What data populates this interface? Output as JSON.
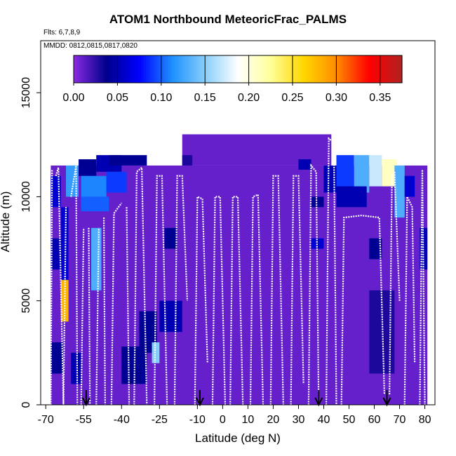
{
  "chart_data": {
    "type": "heatmap",
    "title": "ATOM1 Northbound MeteoricFrac_PALMS",
    "subtitle_flights": "Flts: 6,7,8,9",
    "subtitle_dates": "MMDD: 0812,0815,0817,0820",
    "xlabel": "Latitude (deg N)",
    "ylabel": "Altitude (m)",
    "xlim": [
      -72,
      84
    ],
    "ylim": [
      0,
      17500
    ],
    "x_ticks": [
      -70,
      -55,
      -40,
      -25,
      -10,
      0,
      10,
      20,
      30,
      40,
      50,
      60,
      70,
      80
    ],
    "y_ticks": [
      0,
      5000,
      10000,
      15000
    ],
    "colorbar": {
      "range": [
        0,
        0.375
      ],
      "ticks": [
        0.0,
        0.05,
        0.1,
        0.15,
        0.2,
        0.25,
        0.3,
        0.35
      ],
      "tick_labels": [
        "0.00",
        "0.05",
        "0.10",
        "0.15",
        "0.20",
        "0.25",
        "0.30",
        "0.35"
      ],
      "colors": [
        "#8a2be2",
        "#00008b",
        "#0000ff",
        "#1e90ff",
        "#87cefa",
        "#ffffff",
        "#ffff99",
        "#ffd700",
        "#ff8c00",
        "#ff0000",
        "#b22222"
      ]
    },
    "background_value": 0.01,
    "cells": [
      {
        "lat": [
          -68,
          -65
        ],
        "alt": [
          0,
          11000
        ],
        "value": 0.01
      },
      {
        "lat": [
          -68,
          -64
        ],
        "alt": [
          6500,
          8000
        ],
        "value": 0.05
      },
      {
        "lat": [
          -68,
          -64
        ],
        "alt": [
          9500,
          11000
        ],
        "value": 0.06
      },
      {
        "lat": [
          -68,
          -63
        ],
        "alt": [
          1500,
          3000
        ],
        "value": 0.04
      },
      {
        "lat": [
          -64,
          -61
        ],
        "alt": [
          4000,
          6000
        ],
        "value": 0.28
      },
      {
        "lat": [
          -64,
          -61
        ],
        "alt": [
          6000,
          9500
        ],
        "value": 0.06
      },
      {
        "lat": [
          -62,
          -57
        ],
        "alt": [
          10000,
          11500
        ],
        "value": 0.12
      },
      {
        "lat": [
          -60,
          -56
        ],
        "alt": [
          1000,
          2500
        ],
        "value": 0.05
      },
      {
        "lat": [
          -57,
          -50
        ],
        "alt": [
          11000,
          11800
        ],
        "value": 0.04
      },
      {
        "lat": [
          -56,
          -46
        ],
        "alt": [
          10000,
          11000
        ],
        "value": 0.11
      },
      {
        "lat": [
          -56,
          -45
        ],
        "alt": [
          9300,
          10000
        ],
        "value": 0.1
      },
      {
        "lat": [
          -52,
          -48
        ],
        "alt": [
          5500,
          8500
        ],
        "value": 0.13
      },
      {
        "lat": [
          -50,
          -40
        ],
        "alt": [
          11200,
          12000
        ],
        "value": 0.05
      },
      {
        "lat": [
          -46,
          -38
        ],
        "alt": [
          10200,
          11200
        ],
        "value": 0.09
      },
      {
        "lat": [
          -45,
          -30
        ],
        "alt": [
          11500,
          12000
        ],
        "value": 0.04
      },
      {
        "lat": [
          -40,
          -30
        ],
        "alt": [
          1000,
          2800
        ],
        "value": 0.04
      },
      {
        "lat": [
          -33,
          -26
        ],
        "alt": [
          2500,
          4500
        ],
        "value": 0.04
      },
      {
        "lat": [
          -28,
          -25
        ],
        "alt": [
          2000,
          3000
        ],
        "value": 0.15
      },
      {
        "lat": [
          -25,
          -16
        ],
        "alt": [
          3500,
          5000
        ],
        "value": 0.05
      },
      {
        "lat": [
          -23,
          -18
        ],
        "alt": [
          7500,
          8500
        ],
        "value": 0.04
      },
      {
        "lat": [
          -16,
          -12
        ],
        "alt": [
          11500,
          12000
        ],
        "value": 0.03
      },
      {
        "lat": [
          30,
          35
        ],
        "alt": [
          11300,
          11800
        ],
        "value": 0.05
      },
      {
        "lat": [
          35,
          40
        ],
        "alt": [
          7500,
          8000
        ],
        "value": 0.06
      },
      {
        "lat": [
          35,
          40
        ],
        "alt": [
          9500,
          10000
        ],
        "value": 0.04
      },
      {
        "lat": [
          40,
          45
        ],
        "alt": [
          10200,
          11500
        ],
        "value": 0.05
      },
      {
        "lat": [
          45,
          52
        ],
        "alt": [
          10200,
          12000
        ],
        "value": 0.09
      },
      {
        "lat": [
          52,
          58
        ],
        "alt": [
          10200,
          12000
        ],
        "value": 0.13
      },
      {
        "lat": [
          58,
          63
        ],
        "alt": [
          10500,
          12000
        ],
        "value": 0.17
      },
      {
        "lat": [
          63,
          69
        ],
        "alt": [
          10500,
          11800
        ],
        "value": 0.21
      },
      {
        "lat": [
          45,
          57
        ],
        "alt": [
          9500,
          10500
        ],
        "value": 0.05
      },
      {
        "lat": [
          58,
          63
        ],
        "alt": [
          7000,
          8000
        ],
        "value": 0.04
      },
      {
        "lat": [
          58,
          68
        ],
        "alt": [
          1500,
          5500
        ],
        "value": 0.03
      },
      {
        "lat": [
          68,
          72
        ],
        "alt": [
          9000,
          11500
        ],
        "value": 0.13
      },
      {
        "lat": [
          72,
          76
        ],
        "alt": [
          10000,
          11000
        ],
        "value": 0.06
      },
      {
        "lat": [
          78,
          81
        ],
        "alt": [
          6500,
          8500
        ],
        "value": 0.05
      }
    ],
    "flight_tracks": [
      [
        [
          -68,
          0
        ],
        [
          -67.5,
          11300
        ]
      ],
      [
        [
          -66,
          11000
        ],
        [
          -65,
          11400
        ],
        [
          -63,
          0
        ]
      ],
      [
        [
          -63,
          0
        ],
        [
          -62,
          9500
        ]
      ],
      [
        [
          -60,
          10000
        ],
        [
          -58,
          11500
        ],
        [
          -57.5,
          0
        ]
      ],
      [
        [
          -56,
          0
        ],
        [
          -55,
          8500
        ]
      ],
      [
        [
          -53,
          8500
        ],
        [
          -52.5,
          0
        ]
      ],
      [
        [
          -50,
          0
        ],
        [
          -49,
          8500
        ]
      ],
      [
        [
          -47,
          9000
        ],
        [
          -46.5,
          0
        ]
      ],
      [
        [
          -44,
          0
        ],
        [
          -43,
          9200
        ],
        [
          -40,
          9700
        ]
      ],
      [
        [
          -38,
          9500
        ],
        [
          -37,
          0
        ]
      ],
      [
        [
          -35,
          0
        ],
        [
          -34,
          11200
        ],
        [
          -32,
          11400
        ],
        [
          -30,
          0
        ]
      ],
      [
        [
          -27,
          0
        ],
        [
          -26,
          11000
        ],
        [
          -24,
          11000
        ],
        [
          -22,
          0
        ]
      ],
      [
        [
          -19,
          0
        ],
        [
          -18,
          11000
        ],
        [
          -16,
          11000
        ],
        [
          -14,
          5000
        ]
      ],
      [
        [
          -11,
          0
        ],
        [
          -10,
          10000
        ],
        [
          -8,
          9900
        ],
        [
          -6,
          2000
        ]
      ],
      [
        [
          -4,
          0
        ],
        [
          -3,
          10000
        ],
        [
          -1,
          10000
        ],
        [
          1,
          0
        ]
      ],
      [
        [
          3,
          0
        ],
        [
          4,
          10000
        ],
        [
          6,
          10000
        ],
        [
          8,
          0
        ]
      ],
      [
        [
          11,
          0
        ],
        [
          12,
          10000
        ],
        [
          14,
          10100
        ],
        [
          16,
          0
        ]
      ],
      [
        [
          19,
          0
        ],
        [
          20,
          11000
        ],
        [
          22,
          11000
        ],
        [
          24,
          0
        ]
      ],
      [
        [
          27,
          0
        ],
        [
          28,
          11000
        ],
        [
          30,
          11000
        ],
        [
          32,
          1000
        ]
      ],
      [
        [
          34,
          0
        ],
        [
          35,
          11500
        ],
        [
          37,
          11200
        ],
        [
          38,
          0
        ]
      ],
      [
        [
          41,
          0
        ],
        [
          42,
          12800
        ],
        [
          44,
          12600
        ],
        [
          45,
          0
        ]
      ],
      [
        [
          47,
          0
        ],
        [
          48,
          9000
        ],
        [
          55,
          9100
        ],
        [
          62,
          9000
        ],
        [
          64,
          500
        ]
      ],
      [
        [
          66,
          500
        ],
        [
          67,
          11000
        ],
        [
          68,
          11200
        ],
        [
          70,
          5000
        ]
      ],
      [
        [
          72,
          0
        ],
        [
          73,
          10000
        ],
        [
          75,
          9500
        ],
        [
          76,
          2000
        ]
      ],
      [
        [
          78,
          0
        ],
        [
          79,
          11300
        ],
        [
          80,
          0
        ]
      ]
    ],
    "arrow_latitudes": [
      -54,
      -9,
      38,
      65
    ]
  }
}
